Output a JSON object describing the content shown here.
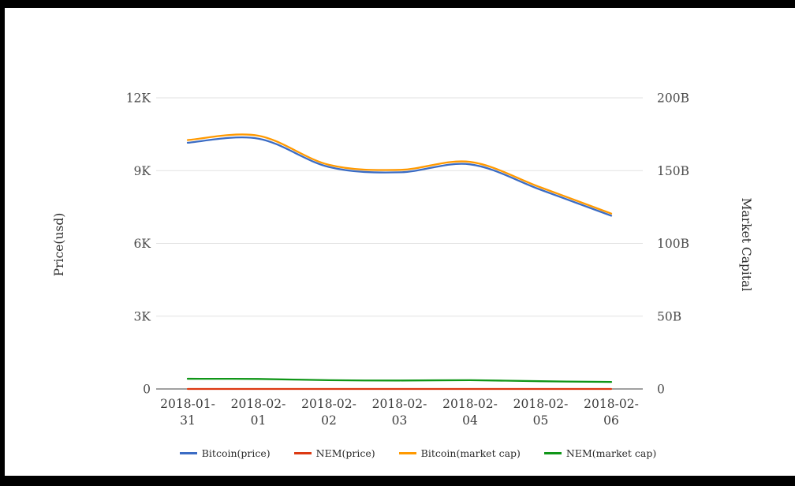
{
  "window": {
    "frame_color": "#000000",
    "background_color": "#ffffff"
  },
  "chart_data": {
    "type": "line",
    "title": "",
    "grid": true,
    "smooth_lines": true,
    "categories": [
      "2018-01-31",
      "2018-02-01",
      "2018-02-02",
      "2018-02-03",
      "2018-02-04",
      "2018-02-05",
      "2018-02-06"
    ],
    "series": [
      {
        "name": "Bitcoin(price)",
        "axis": "left",
        "color": "#3b6cc4",
        "values": [
          10150,
          10320,
          9150,
          8930,
          9260,
          8210,
          7140
        ]
      },
      {
        "name": "NEM(price)",
        "axis": "left",
        "color": "#dc3912",
        "values": [
          0.78,
          0.77,
          0.67,
          0.64,
          0.67,
          0.59,
          0.53
        ]
      },
      {
        "name": "Bitcoin(market cap)",
        "axis": "right",
        "color": "#ff9900",
        "values": [
          171,
          174,
          154,
          150.5,
          156,
          138.5,
          120.5
        ]
      },
      {
        "name": "NEM(market cap)",
        "axis": "right",
        "color": "#109618",
        "values": [
          7.0,
          6.9,
          6.0,
          5.8,
          6.0,
          5.3,
          4.8
        ]
      }
    ],
    "left_axis": {
      "title": "Price(usd)",
      "tick_labels": [
        "12K",
        "9K",
        "6K",
        "3K",
        "0"
      ],
      "tick_values": [
        12000,
        9000,
        6000,
        3000,
        0
      ],
      "range": [
        0,
        12000
      ]
    },
    "right_axis": {
      "title": "Market Capital",
      "tick_labels": [
        "200B",
        "150B",
        "100B",
        "50B",
        "0"
      ],
      "tick_values": [
        200,
        150,
        100,
        50,
        0
      ],
      "range": [
        0,
        200
      ]
    },
    "legend": {
      "position": "bottom",
      "entries": [
        "Bitcoin(price)",
        "NEM(price)",
        "Bitcoin(market cap)",
        "NEM(market cap)"
      ]
    },
    "colors": {
      "gridline": "#e2e2e2",
      "zero_axis": "#424242",
      "tick_text": "#4a4a4a"
    }
  }
}
